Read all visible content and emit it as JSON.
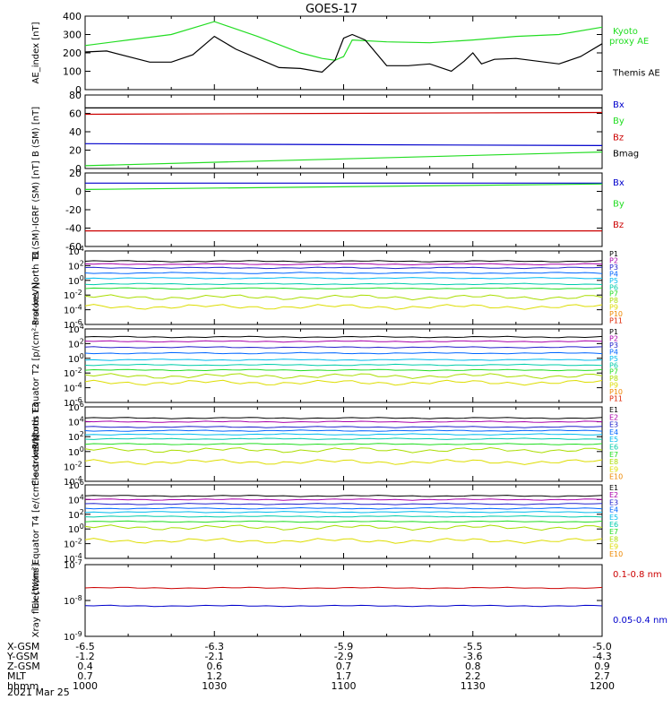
{
  "title": "GOES-17",
  "date": "2021 Mar 25",
  "ephemeris": {
    "ticks": [
      "1000",
      "1030",
      "1100",
      "1130",
      "1200"
    ],
    "rows": [
      {
        "label": "X-GSM",
        "values": [
          "-6.5",
          "-6.3",
          "-5.9",
          "-5.5",
          "-5.0"
        ]
      },
      {
        "label": "Y-GSM",
        "values": [
          "-1.2",
          "-2.1",
          "-2.9",
          "-3.6",
          "-4.3"
        ]
      },
      {
        "label": "Z-GSM",
        "values": [
          "0.4",
          "0.6",
          "0.7",
          "0.8",
          "0.9"
        ]
      },
      {
        "label": "MLT",
        "values": [
          "0.7",
          "1.2",
          "1.7",
          "2.2",
          "2.7"
        ]
      },
      {
        "label": "hhmm",
        "values": [
          "1000",
          "1030",
          "1100",
          "1130",
          "1200"
        ]
      }
    ]
  },
  "colors": {
    "black": "#000000",
    "green": "#22dd22",
    "blue": "#0000cc",
    "red": "#cc0000",
    "P": [
      "#000000",
      "#aa00aa",
      "#2222cc",
      "#0066ff",
      "#00bbee",
      "#00ccaa",
      "#22dd22",
      "#aadd00",
      "#dddd00",
      "#ee8800",
      "#dd2200",
      "#aa0000"
    ]
  },
  "chart_data": [
    {
      "type": "line",
      "ylabel": "AE_index [nT]",
      "ylim": [
        0,
        400
      ],
      "yticks": [
        "0",
        "100",
        "200",
        "300",
        "400"
      ],
      "x_range": [
        "1000",
        "1200"
      ],
      "series": [
        {
          "name": "Kyoto proxy AE",
          "color": "#22dd22",
          "x": [
            1000,
            1010,
            1020,
            1030,
            1040,
            1050,
            1055,
            1058,
            1100,
            1102,
            1110,
            1120,
            1130,
            1140,
            1150,
            1200
          ],
          "y": [
            240,
            270,
            300,
            370,
            290,
            200,
            170,
            160,
            180,
            270,
            260,
            255,
            270,
            290,
            300,
            340
          ]
        },
        {
          "name": "Themis AE",
          "color": "#000000",
          "x": [
            1000,
            1005,
            1015,
            1020,
            1025,
            1030,
            1035,
            1040,
            1045,
            1050,
            1055,
            1058,
            1100,
            1102,
            1105,
            1110,
            1115,
            1120,
            1125,
            1128,
            1130,
            1132,
            1135,
            1140,
            1150,
            1155,
            1200
          ],
          "y": [
            205,
            210,
            150,
            150,
            190,
            290,
            220,
            170,
            120,
            115,
            95,
            160,
            280,
            300,
            270,
            130,
            130,
            140,
            100,
            155,
            200,
            140,
            165,
            170,
            140,
            180,
            250
          ]
        }
      ]
    },
    {
      "type": "line",
      "ylabel": "B (SM) [nT]",
      "ylim": [
        0,
        80
      ],
      "yticks": [
        "0",
        "20",
        "40",
        "60",
        "80"
      ],
      "series": [
        {
          "name": "Bx",
          "color": "#0000cc",
          "x": [
            1000,
            1200
          ],
          "y": [
            27,
            25
          ]
        },
        {
          "name": "By",
          "color": "#22dd22",
          "x": [
            1000,
            1200
          ],
          "y": [
            3,
            18
          ]
        },
        {
          "name": "Bz",
          "color": "#cc0000",
          "x": [
            1000,
            1200
          ],
          "y": [
            59,
            61
          ]
        },
        {
          "name": "Bmag",
          "color": "#000000",
          "x": [
            1000,
            1200
          ],
          "y": [
            66,
            66
          ]
        }
      ]
    },
    {
      "type": "line",
      "ylabel": "B (SM)-IGRF (SM) [nT]",
      "ylim": [
        -60,
        20
      ],
      "yticks": [
        "-60",
        "-40",
        "-20",
        "0",
        "20"
      ],
      "series": [
        {
          "name": "Bx",
          "color": "#0000cc",
          "x": [
            1000,
            1200
          ],
          "y": [
            9,
            9
          ]
        },
        {
          "name": "By",
          "color": "#22dd22",
          "x": [
            1000,
            1200
          ],
          "y": [
            2,
            8
          ]
        },
        {
          "name": "Bz",
          "color": "#cc0000",
          "x": [
            1000,
            1200
          ],
          "y": [
            -43,
            -43
          ]
        }
      ]
    },
    {
      "type": "line",
      "ylabel": "Protons North T1",
      "log": true,
      "ylim": [
        -6,
        4
      ],
      "yticks": [
        "10^-6",
        "10^-4",
        "10^-2",
        "10^0",
        "10^2",
        "10^4"
      ],
      "series": [
        {
          "name": "P1",
          "y": 2.6
        },
        {
          "name": "P2",
          "y": 2.2
        },
        {
          "name": "P3",
          "y": 1.7
        },
        {
          "name": "P4",
          "y": 1.0
        },
        {
          "name": "P5",
          "y": 0.3
        },
        {
          "name": "P6",
          "y": -0.5
        },
        {
          "name": "P7",
          "y": -1.1
        },
        {
          "name": "P8",
          "y": -2.3
        },
        {
          "name": "P9",
          "y": -3.6
        },
        {
          "name": "P10",
          "y": null
        },
        {
          "name": "P11",
          "y": null
        }
      ]
    },
    {
      "type": "line",
      "ylabel": "Protons Equator T2 [p/(cm²-s-sr-keV)]",
      "log": true,
      "ylim": [
        -6,
        4
      ],
      "yticks": [
        "10^-6",
        "10^-4",
        "10^-2",
        "10^0",
        "10^2",
        "10^4"
      ],
      "series": [
        {
          "name": "P1",
          "y": 2.9
        },
        {
          "name": "P2",
          "y": 2.3
        },
        {
          "name": "P3",
          "y": 1.5
        },
        {
          "name": "P4",
          "y": 0.7
        },
        {
          "name": "P5",
          "y": -0.2
        },
        {
          "name": "P6",
          "y": -0.9
        },
        {
          "name": "P7",
          "y": -1.6
        },
        {
          "name": "P8",
          "y": -2.4
        },
        {
          "name": "P9",
          "y": -3.3
        },
        {
          "name": "P10",
          "y": null
        },
        {
          "name": "P11",
          "y": null
        }
      ]
    },
    {
      "type": "line",
      "ylabel": "Electrons North T3",
      "log": true,
      "ylim": [
        -4,
        6
      ],
      "yticks": [
        "10^-4",
        "10^-2",
        "10^0",
        "10^2",
        "10^4",
        "10^6"
      ],
      "series": [
        {
          "name": "E1",
          "y": 4.5
        },
        {
          "name": "E2",
          "y": 4.0
        },
        {
          "name": "E3",
          "y": 3.3
        },
        {
          "name": "E4",
          "y": 2.8
        },
        {
          "name": "E5",
          "y": 2.3
        },
        {
          "name": "E6",
          "y": 1.7
        },
        {
          "name": "E7",
          "y": 1.0
        },
        {
          "name": "E8",
          "y": 0.2
        },
        {
          "name": "E9",
          "y": -1.4
        },
        {
          "name": "E10",
          "y": null
        }
      ]
    },
    {
      "type": "line",
      "ylabel": "Electrons Equator T4 [e/(cm²-s-sr-keV)]",
      "log": true,
      "ylim": [
        -4,
        6
      ],
      "yticks": [
        "10^-4",
        "10^-2",
        "10^0",
        "10^2",
        "10^4",
        "10^6"
      ],
      "series": [
        {
          "name": "E1",
          "y": 4.5
        },
        {
          "name": "E2",
          "y": 4.0
        },
        {
          "name": "E3",
          "y": 3.4
        },
        {
          "name": "E4",
          "y": 2.8
        },
        {
          "name": "E5",
          "y": 2.3
        },
        {
          "name": "E6",
          "y": 1.7
        },
        {
          "name": "E7",
          "y": 1.0
        },
        {
          "name": "E8",
          "y": 0.2
        },
        {
          "name": "E9",
          "y": -1.6
        },
        {
          "name": "E10",
          "y": null
        }
      ]
    },
    {
      "type": "line",
      "ylabel": "Xray flux [W/m²]",
      "log": true,
      "ylim": [
        -9,
        -7
      ],
      "yticks": [
        "10^-9",
        "10^-8",
        "10^-7"
      ],
      "series": [
        {
          "name": "0.1-0.8 nm",
          "color": "#cc0000",
          "y": -7.65
        },
        {
          "name": "0.05-0.4 nm",
          "color": "#0000cc",
          "y": -8.15
        }
      ]
    }
  ]
}
